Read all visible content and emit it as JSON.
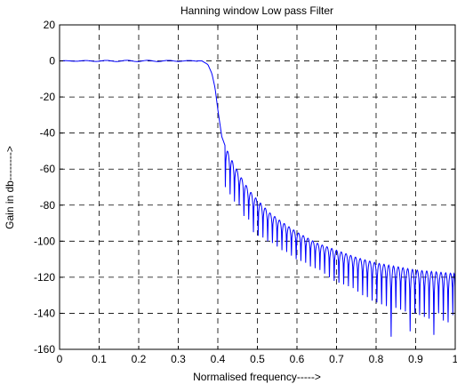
{
  "chart_data": {
    "type": "line",
    "title": "Hanning window Low pass Filter",
    "xlabel": "Normalised frequency----->",
    "ylabel": "Gain in db-------->",
    "xlim": [
      0,
      1
    ],
    "ylim": [
      -160,
      20
    ],
    "x_ticks": [
      0,
      0.1,
      0.2,
      0.3,
      0.4,
      0.5,
      0.6,
      0.7,
      0.8,
      0.9,
      1
    ],
    "x_tick_labels": [
      "0",
      "0.1",
      "0.2",
      "0.3",
      "0.4",
      "0.5",
      "0.6",
      "0.7",
      "0.8",
      "0.9",
      "1"
    ],
    "y_ticks": [
      20,
      0,
      -20,
      -40,
      -60,
      -80,
      -100,
      -120,
      -140,
      -160
    ],
    "y_tick_labels": [
      "20",
      "0",
      "-20",
      "-40",
      "-60",
      "-80",
      "-100",
      "-120",
      "-140",
      "-160"
    ],
    "grid": true,
    "line_color": "#0000ff",
    "series": [
      {
        "envelope": {
          "x": [
            0,
            0.36,
            0.375,
            0.385,
            0.393,
            0.4,
            0.41,
            0.42,
            0.44,
            0.46,
            0.48,
            0.5,
            0.53,
            0.56,
            0.6,
            0.65,
            0.7,
            0.75,
            0.8,
            0.85,
            0.9,
            0.95,
            1.0
          ],
          "y": [
            0,
            0,
            -2,
            -7,
            -15,
            -27,
            -42,
            -48,
            -57,
            -65,
            -72,
            -77,
            -84,
            -89,
            -95,
            -101,
            -105,
            -109,
            -112,
            -114,
            -116,
            -117,
            -118
          ]
        },
        "nulls": {
          "x": [
            0.419,
            0.431,
            0.442,
            0.454,
            0.466,
            0.478,
            0.49,
            0.502,
            0.514,
            0.526,
            0.538,
            0.55,
            0.562,
            0.574,
            0.586,
            0.598,
            0.61,
            0.622,
            0.634,
            0.646,
            0.658,
            0.67,
            0.682,
            0.694,
            0.706,
            0.718,
            0.73,
            0.742,
            0.754,
            0.766,
            0.778,
            0.79,
            0.802,
            0.814,
            0.826,
            0.838,
            0.85,
            0.862,
            0.874,
            0.886,
            0.898,
            0.91,
            0.922,
            0.934,
            0.946,
            0.958,
            0.97,
            0.982,
            0.994
          ],
          "y": [
            -70,
            -74,
            -78,
            -80,
            -86,
            -88,
            -95,
            -97,
            -98,
            -100,
            -101,
            -103,
            -105,
            -106,
            -108,
            -110,
            -111,
            -112,
            -114,
            -115,
            -116,
            -118,
            -120,
            -122,
            -123,
            -124,
            -125,
            -126,
            -128,
            -130,
            -131,
            -133,
            -134,
            -135,
            -136,
            -153,
            -137,
            -138,
            -139,
            -150,
            -140,
            -141,
            -142,
            -143,
            -152,
            -140,
            -144,
            -145,
            -141
          ]
        }
      }
    ]
  }
}
